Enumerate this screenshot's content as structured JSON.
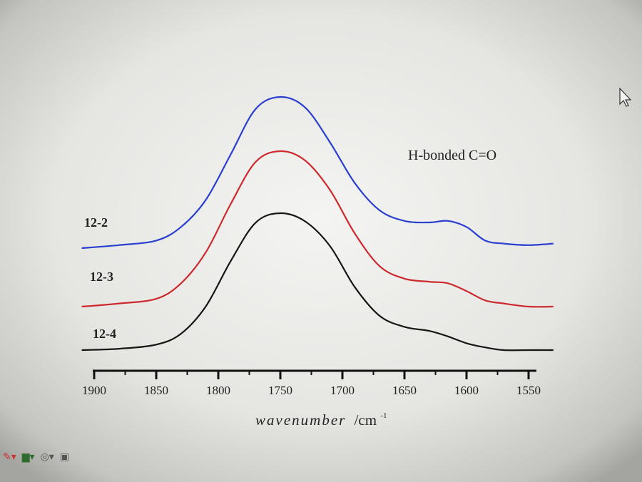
{
  "chart_data": {
    "type": "line",
    "title": "",
    "xlabel": "wavenumber",
    "xlabel_unit": "/cm",
    "xlabel_unit_sup": "-1",
    "ylabel": "",
    "xlim": [
      1900,
      1530
    ],
    "x_reversed": true,
    "yaxis_shown": false,
    "grid": false,
    "annotation": "H-bonded C=O",
    "tick_labels": [
      "1900",
      "1850",
      "1800",
      "1750",
      "1700",
      "1650",
      "1600",
      "1550"
    ],
    "tick_values": [
      1900,
      1850,
      1800,
      1750,
      1700,
      1650,
      1600,
      1550
    ],
    "x": [
      1910,
      1880,
      1850,
      1830,
      1810,
      1790,
      1770,
      1750,
      1730,
      1710,
      1690,
      1670,
      1650,
      1630,
      1615,
      1600,
      1585,
      1570,
      1550,
      1530
    ],
    "series": [
      {
        "name": "12-2",
        "color": "#2a3fd0",
        "values": [
          0.0,
          0.02,
          0.05,
          0.14,
          0.32,
          0.62,
          0.92,
          1.0,
          0.93,
          0.7,
          0.43,
          0.25,
          0.18,
          0.17,
          0.18,
          0.14,
          0.05,
          0.03,
          0.02,
          0.03
        ]
      },
      {
        "name": "12-3",
        "color": "#cc2a2e",
        "values": [
          0.0,
          0.02,
          0.05,
          0.15,
          0.35,
          0.66,
          0.93,
          1.0,
          0.94,
          0.75,
          0.47,
          0.26,
          0.18,
          0.16,
          0.15,
          0.1,
          0.04,
          0.02,
          0.0,
          0.0
        ]
      },
      {
        "name": "12-4",
        "color": "#161616",
        "values": [
          0.0,
          0.01,
          0.04,
          0.12,
          0.32,
          0.65,
          0.93,
          1.0,
          0.94,
          0.76,
          0.46,
          0.25,
          0.17,
          0.14,
          0.1,
          0.05,
          0.02,
          0.0,
          0.0,
          0.0
        ]
      }
    ]
  },
  "toolbar": {
    "icons": [
      "edit-icon",
      "camera-icon",
      "settings-icon",
      "save-icon"
    ]
  }
}
